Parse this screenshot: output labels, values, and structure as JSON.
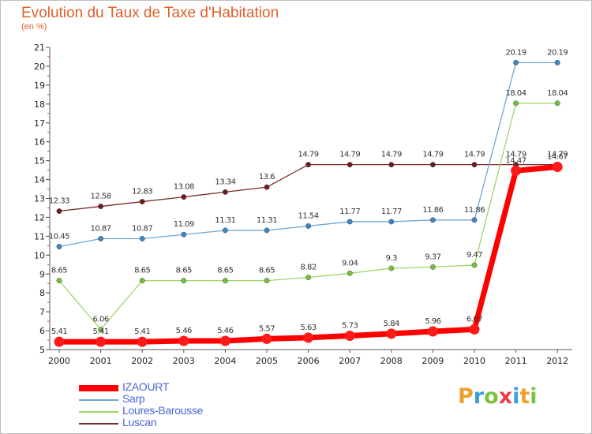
{
  "title": "Evolution du Taux de Taxe d'Habitation",
  "subtitle": "(en %)",
  "brand": {
    "text": "Proxiti",
    "colors": [
      "#f0a030",
      "#3aa0d8",
      "#7cc242",
      "#e8404a",
      "#3aa0d8",
      "#f0a030",
      "#7cc242"
    ]
  },
  "chart_data": {
    "type": "line",
    "x": [
      "2000",
      "2001",
      "2002",
      "2003",
      "2004",
      "2005",
      "2006",
      "2007",
      "2008",
      "2009",
      "2010",
      "2011",
      "2012"
    ],
    "yticks": [
      "5",
      "6",
      "7",
      "8",
      "9",
      "10",
      "11",
      "12",
      "13",
      "14",
      "15",
      "16",
      "17",
      "18",
      "19",
      "20",
      "21"
    ],
    "ylim": [
      5,
      21
    ],
    "grid": false,
    "legend_position": "bottom-left",
    "series": [
      {
        "name": "Luscan",
        "color": "#7a2a2a",
        "marker": "#6b1e1e",
        "width": 1.3,
        "values": [
          12.33,
          12.58,
          12.83,
          13.08,
          13.34,
          13.6,
          14.79,
          14.79,
          14.79,
          14.79,
          14.79,
          14.79,
          14.79
        ],
        "labels": [
          "12.33",
          "12.58",
          "12.83",
          "13.08",
          "13.34",
          "13.6",
          "14.79",
          "14.79",
          "14.79",
          "14.79",
          "14.79",
          "14.79",
          "14.79"
        ]
      },
      {
        "name": "Sarp",
        "color": "#6ea8d8",
        "marker": "#3d86c6",
        "width": 1.3,
        "values": [
          10.45,
          10.87,
          10.87,
          11.09,
          11.31,
          11.31,
          11.54,
          11.77,
          11.77,
          11.86,
          11.86,
          20.19,
          20.19
        ],
        "labels": [
          "10.45",
          "10.87",
          "10.87",
          "11.09",
          "11.31",
          "11.31",
          "11.54",
          "11.77",
          "11.77",
          "11.86",
          "11.86",
          "20.19",
          "20.19"
        ]
      },
      {
        "name": "Loures-Barousse",
        "color": "#9fd66a",
        "marker": "#78c043",
        "width": 1.3,
        "values": [
          8.65,
          6.06,
          8.65,
          8.65,
          8.65,
          8.65,
          8.82,
          9.04,
          9.3,
          9.37,
          9.47,
          18.04,
          18.04
        ],
        "labels": [
          "8.65",
          "6.06",
          "8.65",
          "8.65",
          "8.65",
          "8.65",
          "8.82",
          "9.04",
          "9.3",
          "9.37",
          "9.47",
          "18.04",
          "18.04"
        ]
      },
      {
        "name": "IZAOURT",
        "color": "#ff0000",
        "marker": "#ff1a1a",
        "width": 7,
        "values": [
          5.41,
          5.41,
          5.41,
          5.46,
          5.46,
          5.57,
          5.63,
          5.73,
          5.84,
          5.96,
          6.07,
          14.47,
          14.67
        ],
        "labels": [
          "5.41",
          "5.41",
          "5.41",
          "5.46",
          "5.46",
          "5.57",
          "5.63",
          "5.73",
          "5.84",
          "5.96",
          "6.07",
          "14.47",
          "14.67"
        ]
      }
    ]
  },
  "legend": [
    {
      "name": "IZAOURT",
      "color": "#ff0000",
      "height": 8
    },
    {
      "name": "Sarp",
      "color": "#6ea8d8",
      "height": 2
    },
    {
      "name": "Loures-Barousse",
      "color": "#9fd66a",
      "height": 2
    },
    {
      "name": "Luscan",
      "color": "#7a2a2a",
      "height": 2
    }
  ]
}
